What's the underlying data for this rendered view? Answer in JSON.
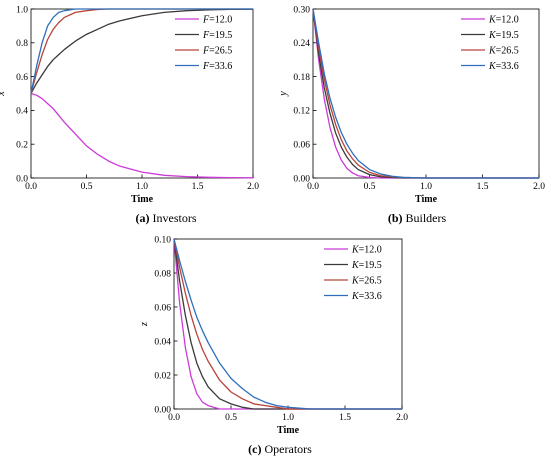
{
  "figure": {
    "colors": {
      "12.0": "#cc3ad8",
      "19.5": "#3a3a3a",
      "26.5": "#b8443a",
      "33.6": "#2d6fbc"
    }
  },
  "chart_data": [
    {
      "type": "line",
      "panel": "a",
      "caption_tag": "(a)",
      "caption_text": " Investors",
      "xlabel": "Time",
      "ylabel": "x",
      "xlim": [
        0.0,
        2.0
      ],
      "ylim": [
        0.0,
        1.0
      ],
      "xticks": [
        "0.0",
        "0.5",
        "1.0",
        "1.5",
        "2.0"
      ],
      "yticks": [
        "0.0",
        "0.2",
        "0.4",
        "0.6",
        "0.8",
        "1.0"
      ],
      "legend_position": "top-right",
      "x": [
        0,
        0.05,
        0.1,
        0.15,
        0.2,
        0.25,
        0.3,
        0.4,
        0.5,
        0.6,
        0.7,
        0.8,
        1.0,
        1.2,
        1.4,
        1.6,
        1.8,
        2.0
      ],
      "series": [
        {
          "var": "F",
          "name": "=12.0",
          "key": "12.0",
          "values": [
            0.5,
            0.49,
            0.47,
            0.44,
            0.41,
            0.37,
            0.33,
            0.26,
            0.19,
            0.14,
            0.1,
            0.07,
            0.035,
            0.016,
            0.008,
            0.004,
            0.002,
            0.001
          ]
        },
        {
          "var": "F",
          "name": "=19.5",
          "key": "19.5",
          "values": [
            0.5,
            0.56,
            0.61,
            0.66,
            0.7,
            0.73,
            0.76,
            0.81,
            0.85,
            0.88,
            0.91,
            0.93,
            0.96,
            0.98,
            0.99,
            0.995,
            0.998,
            0.999
          ]
        },
        {
          "var": "F",
          "name": "=26.5",
          "key": "26.5",
          "values": [
            0.5,
            0.62,
            0.73,
            0.82,
            0.88,
            0.92,
            0.95,
            0.98,
            0.99,
            0.997,
            1.0,
            1.0,
            1.0,
            1.0,
            1.0,
            1.0,
            1.0,
            1.0
          ]
        },
        {
          "var": "F",
          "name": "=33.6",
          "key": "33.6",
          "values": [
            0.5,
            0.66,
            0.8,
            0.9,
            0.95,
            0.98,
            0.99,
            1.0,
            1.0,
            1.0,
            1.0,
            1.0,
            1.0,
            1.0,
            1.0,
            1.0,
            1.0,
            1.0
          ]
        }
      ]
    },
    {
      "type": "line",
      "panel": "b",
      "caption_tag": "(b)",
      "caption_text": " Builders",
      "xlabel": "Time",
      "ylabel": "y",
      "xlim": [
        0.0,
        2.0
      ],
      "ylim": [
        0.0,
        0.3
      ],
      "xticks": [
        "0.0",
        "0.5",
        "1.0",
        "1.5",
        "2.0"
      ],
      "yticks": [
        "0.00",
        "0.06",
        "0.12",
        "0.18",
        "0.24",
        "0.30"
      ],
      "legend_position": "top-right",
      "x": [
        0,
        0.05,
        0.1,
        0.15,
        0.2,
        0.25,
        0.3,
        0.35,
        0.4,
        0.5,
        0.6,
        0.7,
        0.8,
        1.0,
        1.2,
        1.5,
        2.0
      ],
      "series": [
        {
          "var": "K",
          "name": "=12.0",
          "key": "12.0",
          "values": [
            0.3,
            0.21,
            0.14,
            0.09,
            0.055,
            0.032,
            0.017,
            0.009,
            0.004,
            0.001,
            0.0,
            0.0,
            0.0,
            0.0,
            0.0,
            0.0,
            0.0
          ]
        },
        {
          "var": "K",
          "name": "=19.5",
          "key": "19.5",
          "values": [
            0.3,
            0.22,
            0.16,
            0.115,
            0.08,
            0.055,
            0.037,
            0.024,
            0.015,
            0.006,
            0.002,
            0.001,
            0.0,
            0.0,
            0.0,
            0.0,
            0.0
          ]
        },
        {
          "var": "K",
          "name": "=26.5",
          "key": "26.5",
          "values": [
            0.3,
            0.23,
            0.175,
            0.13,
            0.095,
            0.068,
            0.048,
            0.034,
            0.023,
            0.01,
            0.004,
            0.002,
            0.001,
            0.0,
            0.0,
            0.0,
            0.0
          ]
        },
        {
          "var": "K",
          "name": "=33.6",
          "key": "33.6",
          "values": [
            0.3,
            0.24,
            0.185,
            0.142,
            0.108,
            0.081,
            0.06,
            0.044,
            0.031,
            0.015,
            0.007,
            0.003,
            0.001,
            0.0,
            0.0,
            0.0,
            0.0
          ]
        }
      ]
    },
    {
      "type": "line",
      "panel": "c",
      "caption_tag": "(c)",
      "caption_text": " Operators",
      "xlabel": "Time",
      "ylabel": "z",
      "xlim": [
        0.0,
        2.0
      ],
      "ylim": [
        0.0,
        0.1
      ],
      "xticks": [
        "0.0",
        "0.5",
        "1.0",
        "1.5",
        "2.0"
      ],
      "yticks": [
        "0.00",
        "0.02",
        "0.04",
        "0.06",
        "0.08",
        "0.10"
      ],
      "legend_position": "top-right",
      "x": [
        0,
        0.05,
        0.1,
        0.15,
        0.2,
        0.25,
        0.3,
        0.4,
        0.5,
        0.6,
        0.7,
        0.8,
        0.9,
        1.0,
        1.2,
        1.5,
        2.0
      ],
      "series": [
        {
          "var": "K",
          "name": "=12.0",
          "key": "12.0",
          "values": [
            0.1,
            0.062,
            0.036,
            0.019,
            0.009,
            0.004,
            0.002,
            0.0,
            0.0,
            0.0,
            0.0,
            0.0,
            0.0,
            0.0,
            0.0,
            0.0,
            0.0
          ]
        },
        {
          "var": "K",
          "name": "=19.5",
          "key": "19.5",
          "values": [
            0.1,
            0.075,
            0.055,
            0.039,
            0.027,
            0.019,
            0.013,
            0.006,
            0.003,
            0.001,
            0.0,
            0.0,
            0.0,
            0.0,
            0.0,
            0.0,
            0.0
          ]
        },
        {
          "var": "K",
          "name": "=26.5",
          "key": "26.5",
          "values": [
            0.1,
            0.083,
            0.068,
            0.055,
            0.044,
            0.035,
            0.028,
            0.017,
            0.01,
            0.006,
            0.003,
            0.002,
            0.001,
            0.0,
            0.0,
            0.0,
            0.0
          ]
        },
        {
          "var": "K",
          "name": "=33.6",
          "key": "33.6",
          "values": [
            0.1,
            0.087,
            0.075,
            0.064,
            0.054,
            0.046,
            0.039,
            0.027,
            0.018,
            0.012,
            0.007,
            0.004,
            0.002,
            0.001,
            0.0,
            0.0,
            0.0
          ]
        }
      ]
    }
  ]
}
